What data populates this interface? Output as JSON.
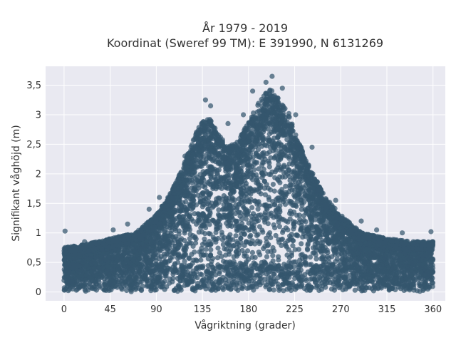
{
  "chart_data": {
    "type": "scatter",
    "title_lines": [
      "År 1979 - 2019",
      "Koordinat (Sweref 99 TM): E 391990, N 6131269"
    ],
    "xlabel": "Vågriktning (grader)",
    "ylabel": "Signifikant våghöjd (m)",
    "xlim": [
      -18,
      372
    ],
    "ylim": [
      -0.15,
      3.82
    ],
    "x_ticks": [
      0,
      45,
      90,
      135,
      180,
      225,
      270,
      315,
      360
    ],
    "y_ticks": [
      0,
      0.5,
      1,
      1.5,
      2,
      2.5,
      3,
      3.5
    ],
    "y_tick_labels": [
      "0",
      "0,5",
      "1",
      "1,5",
      "2",
      "2,5",
      "3",
      "3,5"
    ],
    "grid": true,
    "marker_color": "#34566d",
    "plot_background": "#e9e9f1",
    "grid_color": "#ffffff",
    "envelope": {
      "description": "upper bound of observed significant wave height by direction (m)",
      "direction_deg": [
        0,
        20,
        45,
        70,
        90,
        105,
        120,
        130,
        140,
        150,
        160,
        170,
        180,
        190,
        200,
        210,
        220,
        230,
        240,
        255,
        270,
        290,
        315,
        340,
        360
      ],
      "max_height_m": [
        0.75,
        0.8,
        0.9,
        1.0,
        1.3,
        1.7,
        2.3,
        2.75,
        3.0,
        2.7,
        2.45,
        2.55,
        2.9,
        3.2,
        3.45,
        3.3,
        3.0,
        2.5,
        2.1,
        1.6,
        1.3,
        1.0,
        0.9,
        0.85,
        0.85
      ]
    },
    "outlier_points": [
      {
        "x": 1,
        "y": 1.03
      },
      {
        "x": 20,
        "y": 0.85
      },
      {
        "x": 48,
        "y": 1.05
      },
      {
        "x": 62,
        "y": 1.15
      },
      {
        "x": 83,
        "y": 1.4
      },
      {
        "x": 93,
        "y": 1.6
      },
      {
        "x": 118,
        "y": 2.3
      },
      {
        "x": 138,
        "y": 3.25
      },
      {
        "x": 143,
        "y": 3.15
      },
      {
        "x": 160,
        "y": 2.85
      },
      {
        "x": 175,
        "y": 3.0
      },
      {
        "x": 184,
        "y": 3.4
      },
      {
        "x": 197,
        "y": 3.55
      },
      {
        "x": 203,
        "y": 3.65
      },
      {
        "x": 213,
        "y": 3.45
      },
      {
        "x": 226,
        "y": 3.0
      },
      {
        "x": 242,
        "y": 2.45
      },
      {
        "x": 265,
        "y": 1.55
      },
      {
        "x": 290,
        "y": 1.2
      },
      {
        "x": 305,
        "y": 1.05
      },
      {
        "x": 330,
        "y": 1.0
      },
      {
        "x": 358,
        "y": 1.02
      }
    ]
  }
}
